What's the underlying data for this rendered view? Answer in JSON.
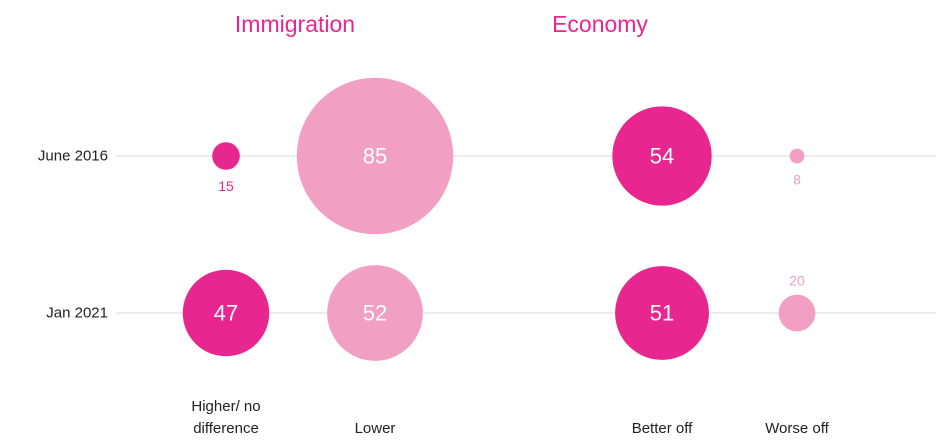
{
  "chart_data": {
    "type": "bubble",
    "groups": [
      {
        "title": "Immigration",
        "categories": [
          "Higher/ no difference",
          "Lower"
        ]
      },
      {
        "title": "Economy",
        "categories": [
          "Better off",
          "Worse off"
        ]
      }
    ],
    "colors": [
      "#e8268f",
      "#f29fc4",
      "#e8268f",
      "#f29fc4"
    ],
    "series": [
      {
        "name": "June 2016",
        "values": [
          15,
          85,
          54,
          8
        ]
      },
      {
        "name": "Jan 2021",
        "values": [
          47,
          52,
          51,
          20
        ]
      }
    ]
  }
}
